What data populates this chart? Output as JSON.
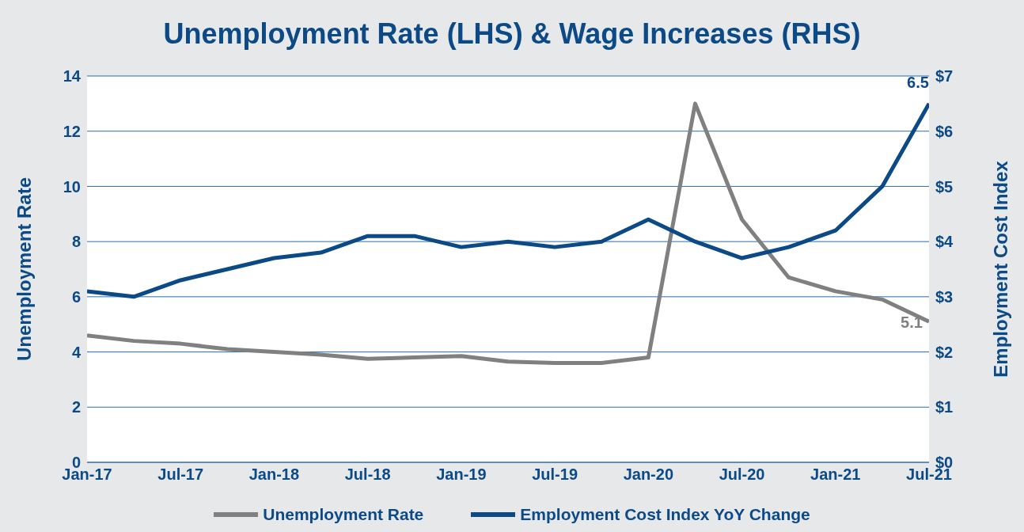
{
  "chart_data": {
    "type": "line",
    "title": "Unemployment Rate (LHS) & Wage Increases (RHS)",
    "ylabel": "Unemployment Rate",
    "y2label": "Employment Cost Index",
    "categories": [
      "Jan-17",
      null,
      "Jul-17",
      null,
      "Jan-18",
      null,
      "Jul-18",
      null,
      "Jan-19",
      null,
      "Jul-19",
      null,
      "Jan-20",
      null,
      "Jul-20",
      null,
      "Jan-21",
      null,
      "Jul-21"
    ],
    "series": [
      {
        "name": "Unemployment Rate",
        "color": "#808080",
        "values": [
          4.6,
          4.4,
          4.3,
          4.1,
          4.0,
          3.9,
          3.75,
          3.8,
          3.85,
          3.65,
          3.6,
          3.6,
          3.8,
          13.0,
          8.8,
          6.7,
          6.2,
          5.9,
          5.1
        ],
        "value_labels": [
          null,
          null,
          null,
          null,
          null,
          null,
          null,
          null,
          null,
          null,
          null,
          null,
          null,
          null,
          null,
          null,
          null,
          null,
          "5.1"
        ]
      },
      {
        "name": "Employment Cost Index YoY Change",
        "color": "#0b4a86",
        "axis": "y2",
        "values": [
          3.1,
          3.0,
          3.3,
          3.5,
          3.7,
          3.8,
          4.1,
          4.1,
          3.9,
          4.0,
          3.9,
          4.0,
          4.4,
          4.0,
          3.7,
          3.9,
          4.2,
          5.0,
          6.5
        ],
        "value_labels": [
          null,
          null,
          null,
          null,
          null,
          null,
          null,
          null,
          null,
          null,
          null,
          null,
          null,
          null,
          null,
          null,
          null,
          null,
          "6.5"
        ]
      }
    ],
    "ylim": [
      0,
      14
    ],
    "yticks": [
      0,
      2,
      4,
      6,
      8,
      10,
      12,
      14
    ],
    "y2lim": [
      0,
      7
    ],
    "y2ticks": [
      {
        "value": 0,
        "label": "$0"
      },
      {
        "value": 1,
        "label": "$1"
      },
      {
        "value": 2,
        "label": "$2"
      },
      {
        "value": 3,
        "label": "$3"
      },
      {
        "value": 4,
        "label": "$4"
      },
      {
        "value": 5,
        "label": "$5"
      },
      {
        "value": 6,
        "label": "$6"
      },
      {
        "value": 7,
        "label": "$7"
      }
    ],
    "grid": "y",
    "legend": "bottom",
    "marker": "none",
    "line_style": "solid"
  }
}
